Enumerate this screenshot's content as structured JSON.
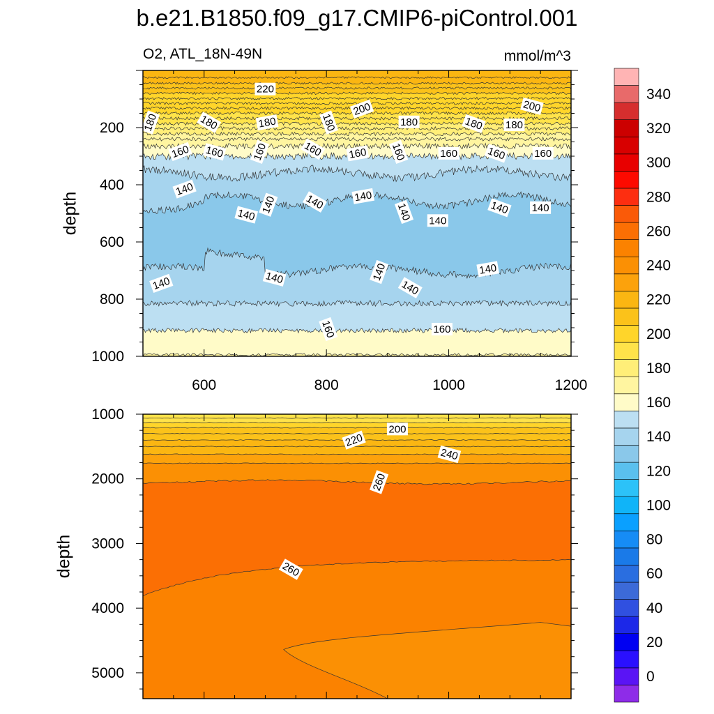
{
  "chart_data": {
    "type": "contour",
    "title": "b.e21.B1850.f09_g17.CMIP6-piControl.001",
    "variable_label": "O2, ATL_18N-49N",
    "units": "mmol/m^3",
    "ylabel": "depth",
    "xlim": [
      500,
      1200
    ],
    "x_ticks": [
      "600",
      "800",
      "1000",
      "1200"
    ],
    "panels": [
      {
        "name": "upper",
        "ylim": [
          0,
          1000
        ],
        "y_ticks": [
          "200",
          "400",
          "600",
          "800",
          "1000"
        ],
        "x_tick_labels_shown": true,
        "contour_labels": [
          {
            "text": "220",
            "x": 700,
            "y": 65
          },
          {
            "text": "200",
            "x": 858,
            "y": 135
          },
          {
            "text": "200",
            "x": 1136,
            "y": 125
          },
          {
            "text": "180",
            "x": 512,
            "y": 182
          },
          {
            "text": "180",
            "x": 608,
            "y": 182
          },
          {
            "text": "180",
            "x": 703,
            "y": 182
          },
          {
            "text": "180",
            "x": 804,
            "y": 182
          },
          {
            "text": "180",
            "x": 935,
            "y": 180
          },
          {
            "text": "180",
            "x": 1041,
            "y": 186
          },
          {
            "text": "180",
            "x": 1107,
            "y": 190
          },
          {
            "text": "160",
            "x": 561,
            "y": 284
          },
          {
            "text": "160",
            "x": 617,
            "y": 285
          },
          {
            "text": "160",
            "x": 691,
            "y": 285
          },
          {
            "text": "160",
            "x": 778,
            "y": 275
          },
          {
            "text": "160",
            "x": 851,
            "y": 290
          },
          {
            "text": "160",
            "x": 918,
            "y": 285
          },
          {
            "text": "160",
            "x": 1000,
            "y": 290
          },
          {
            "text": "160",
            "x": 1078,
            "y": 290
          },
          {
            "text": "160",
            "x": 1154,
            "y": 290
          },
          {
            "text": "140",
            "x": 568,
            "y": 415
          },
          {
            "text": "140",
            "x": 669,
            "y": 505
          },
          {
            "text": "140",
            "x": 705,
            "y": 470
          },
          {
            "text": "140",
            "x": 781,
            "y": 460
          },
          {
            "text": "140",
            "x": 860,
            "y": 440
          },
          {
            "text": "140",
            "x": 927,
            "y": 495
          },
          {
            "text": "140",
            "x": 982,
            "y": 525
          },
          {
            "text": "140",
            "x": 1083,
            "y": 480
          },
          {
            "text": "140",
            "x": 1150,
            "y": 480
          },
          {
            "text": "140",
            "x": 530,
            "y": 745
          },
          {
            "text": "140",
            "x": 715,
            "y": 725
          },
          {
            "text": "140",
            "x": 886,
            "y": 705
          },
          {
            "text": "140",
            "x": 937,
            "y": 760
          },
          {
            "text": "140",
            "x": 1064,
            "y": 695
          },
          {
            "text": "160",
            "x": 803,
            "y": 905
          },
          {
            "text": "160",
            "x": 989,
            "y": 905
          }
        ]
      },
      {
        "name": "lower",
        "ylim": [
          1000,
          5400
        ],
        "y_ticks": [
          "1000",
          "2000",
          "3000",
          "4000",
          "5000"
        ],
        "x_tick_labels_shown": false,
        "contour_labels": [
          {
            "text": "200",
            "x": 916,
            "y": 1230
          },
          {
            "text": "220",
            "x": 845,
            "y": 1400
          },
          {
            "text": "240",
            "x": 1001,
            "y": 1620
          },
          {
            "text": "260",
            "x": 886,
            "y": 2050
          },
          {
            "text": "260",
            "x": 742,
            "y": 3400
          }
        ]
      }
    ],
    "colorbar": {
      "levels": [
        -10,
        0,
        10,
        20,
        30,
        40,
        50,
        60,
        70,
        80,
        90,
        100,
        110,
        120,
        130,
        140,
        150,
        160,
        170,
        180,
        190,
        200,
        210,
        220,
        230,
        240,
        250,
        260,
        270,
        280,
        290,
        300,
        310,
        320,
        330,
        340,
        350,
        360
      ],
      "labels": [
        "0",
        "20",
        "40",
        "60",
        "80",
        "100",
        "120",
        "140",
        "160",
        "180",
        "200",
        "220",
        "240",
        "260",
        "280",
        "300",
        "320",
        "340"
      ],
      "colors": [
        "#8e2ce8",
        "#5a14f5",
        "#2a10ff",
        "#0000f2",
        "#1c28e8",
        "#3050e0",
        "#3c6ad8",
        "#2a6ee0",
        "#1a7ae8",
        "#168cf5",
        "#0aa0ff",
        "#10b4f8",
        "#2cc2f8",
        "#5ac0ee",
        "#8ac8ea",
        "#a6d4ee",
        "#bcdff2",
        "#fffbc8",
        "#fff5a0",
        "#ffee78",
        "#ffe34a",
        "#ffd52a",
        "#fbc21a",
        "#fbb612",
        "#fca20c",
        "#fb9004",
        "#fb8200",
        "#fb6f04",
        "#fa5a08",
        "#fd2e10",
        "#fd0a00",
        "#e80000",
        "#d80000",
        "#cc0000",
        "#d62e2e",
        "#e86a6a",
        "#ffb4b4"
      ]
    }
  }
}
